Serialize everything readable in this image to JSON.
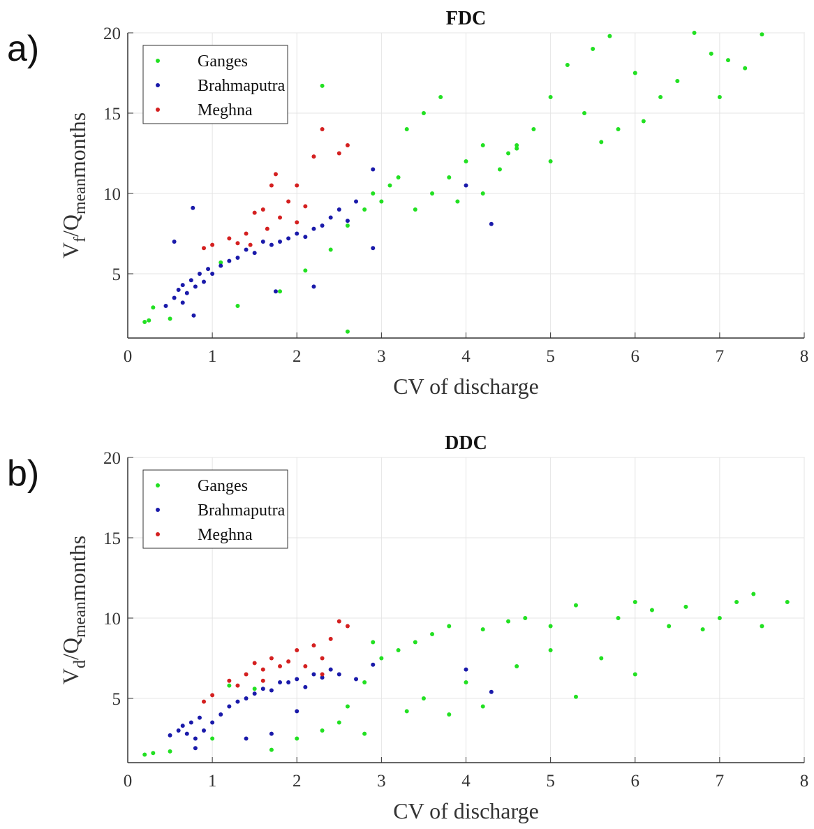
{
  "chart_data": [
    {
      "type": "scatter",
      "panel_label": "a)",
      "title": "FDC",
      "xlabel": "CV of discharge",
      "ylabel": [
        "V",
        "f",
        "/Q",
        "mean"
      ],
      "ylabel_unit": "months",
      "xlim": [
        0,
        8
      ],
      "xticks": [
        0,
        1,
        2,
        3,
        4,
        5,
        6,
        7,
        8
      ],
      "ylim": [
        1,
        20
      ],
      "yticks": [
        5,
        10,
        15,
        20
      ],
      "grid": true,
      "legend": "upper left",
      "series": [
        {
          "name": "Ganges",
          "color": "#22e022",
          "x": [
            0.2,
            0.25,
            0.5,
            2.6,
            1.3,
            1.8,
            2.1,
            2.4,
            2.6,
            2.8,
            2.9,
            3.0,
            3.1,
            3.2,
            3.3,
            3.5,
            3.7,
            3.4,
            3.6,
            3.8,
            4.0,
            4.2,
            4.2,
            4.4,
            4.5,
            4.6,
            4.8,
            5.0,
            5.0,
            5.2,
            5.4,
            5.5,
            5.7,
            5.8,
            6.0,
            6.1,
            6.3,
            6.5,
            6.7,
            6.9,
            7.0,
            7.1,
            7.3,
            7.5,
            2.3,
            1.1,
            0.3,
            3.9,
            4.6,
            5.6
          ],
          "values": [
            2,
            2.1,
            2.2,
            1.4,
            3,
            3.9,
            5.2,
            6.5,
            8,
            9,
            10,
            9.5,
            10.5,
            11,
            14,
            15,
            16,
            9,
            10,
            11,
            12,
            10,
            13,
            11.5,
            12.5,
            13,
            14,
            12,
            16,
            18,
            15,
            19,
            19.8,
            14,
            17.5,
            14.5,
            16,
            17,
            20,
            18.7,
            16,
            18.3,
            17.8,
            19.9,
            16.7,
            5.7,
            2.9,
            9.5,
            12.8,
            13.2
          ]
        },
        {
          "name": "Brahmaputra",
          "color": "#1a1aaa",
          "x": [
            0.45,
            0.55,
            0.6,
            0.65,
            0.7,
            0.75,
            0.8,
            0.85,
            0.9,
            0.95,
            1.0,
            1.1,
            1.2,
            1.3,
            1.4,
            1.5,
            1.6,
            1.7,
            1.8,
            1.9,
            2.0,
            2.1,
            2.2,
            2.3,
            2.4,
            2.5,
            2.6,
            2.7,
            2.9,
            2.9,
            4.3,
            4.0,
            0.77,
            0.55,
            0.78,
            1.75,
            2.2,
            0.65
          ],
          "values": [
            3,
            3.5,
            4,
            4.3,
            3.8,
            4.6,
            4.2,
            5,
            4.5,
            5.3,
            5,
            5.5,
            5.8,
            6,
            6.5,
            6.3,
            7,
            6.8,
            7,
            7.2,
            7.5,
            7.3,
            7.8,
            8,
            8.5,
            9,
            8.3,
            9.5,
            11.5,
            6.6,
            8.1,
            10.5,
            9.1,
            7,
            2.4,
            3.9,
            4.2,
            3.2
          ]
        },
        {
          "name": "Meghna",
          "color": "#d42020",
          "x": [
            0.9,
            1.0,
            1.2,
            1.3,
            1.4,
            1.5,
            1.6,
            1.7,
            1.75,
            1.8,
            1.9,
            2.0,
            2.1,
            2.2,
            2.3,
            2.5,
            2.6,
            1.65,
            2.0,
            1.45
          ],
          "values": [
            6.6,
            6.8,
            7.2,
            6.9,
            7.5,
            8.8,
            9,
            10.5,
            11.2,
            8.5,
            9.5,
            10.5,
            9.2,
            12.3,
            14,
            12.5,
            13,
            7.8,
            8.2,
            6.8
          ]
        }
      ]
    },
    {
      "type": "scatter",
      "panel_label": "b)",
      "title": "DDC",
      "xlabel": "CV of discharge",
      "ylabel": [
        "V",
        "d",
        "/Q",
        "mean"
      ],
      "ylabel_unit": "months",
      "xlim": [
        0,
        8
      ],
      "xticks": [
        0,
        1,
        2,
        3,
        4,
        5,
        6,
        7,
        8
      ],
      "ylim": [
        1,
        20
      ],
      "yticks": [
        5,
        10,
        15,
        20
      ],
      "grid": true,
      "legend": "upper left",
      "series": [
        {
          "name": "Ganges",
          "color": "#22e022",
          "x": [
            0.2,
            0.3,
            0.5,
            1.7,
            2.0,
            2.3,
            2.5,
            2.8,
            2.6,
            2.8,
            3.0,
            3.2,
            3.4,
            3.6,
            3.8,
            3.5,
            3.8,
            4.0,
            4.2,
            4.2,
            4.5,
            4.7,
            5.0,
            5.0,
            5.3,
            5.3,
            5.6,
            5.8,
            6.0,
            6.0,
            6.2,
            6.4,
            6.6,
            6.8,
            7.0,
            7.2,
            7.4,
            7.5,
            7.8,
            1.2,
            1.5,
            1.0,
            3.3,
            4.6,
            2.9
          ],
          "values": [
            1.5,
            1.6,
            1.7,
            1.8,
            2.5,
            3,
            3.5,
            2.8,
            4.5,
            6,
            7.5,
            8,
            8.5,
            9,
            9.5,
            5,
            4,
            6,
            4.5,
            9.3,
            9.8,
            10,
            9.5,
            8,
            10.8,
            5.1,
            7.5,
            10,
            11,
            6.5,
            10.5,
            9.5,
            10.7,
            9.3,
            10,
            11,
            11.5,
            9.5,
            11,
            5.8,
            5.6,
            2.5,
            4.2,
            7,
            8.5
          ]
        },
        {
          "name": "Brahmaputra",
          "color": "#1a1aaa",
          "x": [
            0.5,
            0.6,
            0.65,
            0.7,
            0.75,
            0.8,
            0.85,
            0.9,
            1.0,
            1.1,
            1.2,
            1.3,
            1.4,
            1.5,
            1.6,
            1.7,
            1.8,
            1.9,
            2.0,
            2.1,
            2.2,
            2.3,
            2.4,
            2.5,
            2.7,
            2.9,
            4.0,
            4.3,
            1.4,
            1.7,
            2.0,
            0.8
          ],
          "values": [
            2.7,
            3,
            3.3,
            2.8,
            3.5,
            2.5,
            3.8,
            3,
            3.5,
            4,
            4.5,
            4.8,
            5,
            5.3,
            5.6,
            5.5,
            6,
            6,
            6.2,
            5.7,
            6.5,
            6.3,
            6.8,
            6.5,
            6.2,
            7.1,
            6.8,
            5.4,
            2.5,
            2.8,
            4.2,
            1.9
          ]
        },
        {
          "name": "Meghna",
          "color": "#d42020",
          "x": [
            0.9,
            1.0,
            1.2,
            1.3,
            1.4,
            1.5,
            1.6,
            1.7,
            1.8,
            1.9,
            2.0,
            2.1,
            2.2,
            2.3,
            2.4,
            2.5,
            2.6,
            2.3,
            1.6
          ],
          "values": [
            4.8,
            5.2,
            6.1,
            5.8,
            6.5,
            7.2,
            6.8,
            7.5,
            7,
            7.3,
            8,
            7,
            8.3,
            7.5,
            8.7,
            9.8,
            9.5,
            6.5,
            6.1
          ]
        }
      ]
    }
  ]
}
